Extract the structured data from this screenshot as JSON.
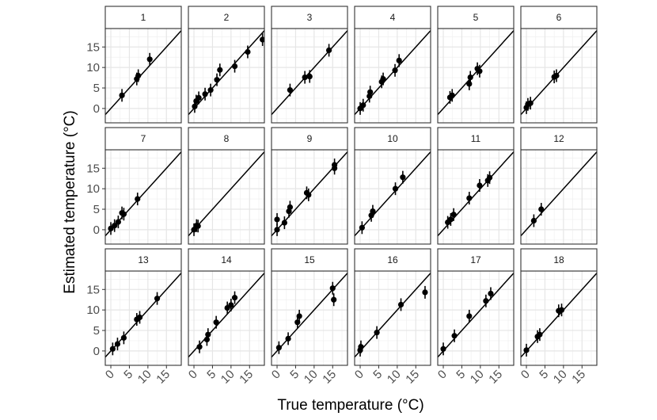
{
  "chart_data": {
    "type": "scatter",
    "facets": [
      "1",
      "2",
      "3",
      "4",
      "5",
      "6",
      "7",
      "8",
      "9",
      "10",
      "11",
      "12",
      "13",
      "14",
      "15",
      "16",
      "17",
      "18"
    ],
    "xlabel": "True temperature (°C)",
    "ylabel": "Estimated temperature (°C)",
    "xlim": [
      -1.5,
      19
    ],
    "ylim": [
      -3.5,
      19.5
    ],
    "xticks": [
      0,
      5,
      10,
      15
    ],
    "yticks": [
      0,
      5,
      10,
      15
    ],
    "grid": true,
    "reference_line": "y = x",
    "series": [
      {
        "facet": "1",
        "points": [
          [
            3,
            3.2
          ],
          [
            7,
            7.2
          ],
          [
            7.4,
            8
          ],
          [
            10.5,
            12
          ]
        ]
      },
      {
        "facet": "2",
        "points": [
          [
            0.2,
            0.5
          ],
          [
            0.6,
            1.8
          ],
          [
            1.3,
            2.6
          ],
          [
            3,
            3.5
          ],
          [
            4.5,
            4.5
          ],
          [
            6.2,
            7
          ],
          [
            7,
            9.4
          ],
          [
            11,
            10.3
          ],
          [
            14.5,
            13.8
          ],
          [
            18.5,
            16.8
          ]
        ]
      },
      {
        "facet": "3",
        "points": [
          [
            3.5,
            4.5
          ],
          [
            7.5,
            7.6
          ],
          [
            8.8,
            7.8
          ],
          [
            14,
            14.2
          ]
        ]
      },
      {
        "facet": "4",
        "points": [
          [
            0,
            0
          ],
          [
            0.8,
            0.8
          ],
          [
            2.5,
            3
          ],
          [
            2.7,
            4
          ],
          [
            5.8,
            6.5
          ],
          [
            6.2,
            7.2
          ],
          [
            9.4,
            9.3
          ],
          [
            10.5,
            11.7
          ]
        ]
      },
      {
        "facet": "5",
        "points": [
          [
            1.8,
            2.7
          ],
          [
            2.4,
            3.2
          ],
          [
            7,
            6
          ],
          [
            7.3,
            7.6
          ],
          [
            9.2,
            9.7
          ],
          [
            9.8,
            9.1
          ]
        ]
      },
      {
        "facet": "6",
        "points": [
          [
            0,
            0.2
          ],
          [
            0.4,
            1
          ],
          [
            1.1,
            1.3
          ],
          [
            7.5,
            7.7
          ],
          [
            8.1,
            8
          ]
        ]
      },
      {
        "facet": "7",
        "points": [
          [
            0,
            0.3
          ],
          [
            1,
            1
          ],
          [
            2,
            1.9
          ],
          [
            3,
            4.1
          ],
          [
            3.5,
            3.8
          ],
          [
            7.2,
            7.5
          ]
        ]
      },
      {
        "facet": "8",
        "points": [
          [
            0,
            0
          ],
          [
            0.7,
            1
          ],
          [
            1.1,
            0.9
          ]
        ]
      },
      {
        "facet": "9",
        "points": [
          [
            0,
            2.5
          ],
          [
            0,
            0
          ],
          [
            2,
            1.7
          ],
          [
            3.2,
            4.5
          ],
          [
            3.5,
            5.5
          ],
          [
            8,
            9
          ],
          [
            8.5,
            8.5
          ],
          [
            15.5,
            15.8
          ],
          [
            15.5,
            15
          ]
        ]
      },
      {
        "facet": "10",
        "points": [
          [
            0.5,
            0.5
          ],
          [
            3,
            3.5
          ],
          [
            3.4,
            4.5
          ],
          [
            9.5,
            10
          ],
          [
            11.5,
            12.8
          ]
        ]
      },
      {
        "facet": "11",
        "points": [
          [
            1.2,
            1.8
          ],
          [
            2,
            2.5
          ],
          [
            2.8,
            3.7
          ],
          [
            7,
            7.7
          ],
          [
            9.8,
            10.8
          ],
          [
            12,
            12
          ],
          [
            12.5,
            12.7
          ]
        ]
      },
      {
        "facet": "12",
        "points": [
          [
            2,
            2.2
          ],
          [
            4,
            5
          ]
        ]
      },
      {
        "facet": "13",
        "points": [
          [
            0.5,
            0.5
          ],
          [
            1.8,
            1.7
          ],
          [
            3.5,
            3.2
          ],
          [
            7,
            7.7
          ],
          [
            7.8,
            8.2
          ],
          [
            12.5,
            12.8
          ]
        ]
      },
      {
        "facet": "14",
        "points": [
          [
            1.5,
            1
          ],
          [
            3.5,
            2.8
          ],
          [
            3.8,
            4
          ],
          [
            6,
            7
          ],
          [
            9,
            10.5
          ],
          [
            10,
            11.2
          ],
          [
            11,
            13
          ]
        ]
      },
      {
        "facet": "15",
        "points": [
          [
            0.5,
            0.8
          ],
          [
            3,
            3
          ],
          [
            5.5,
            7
          ],
          [
            6,
            8.5
          ],
          [
            15,
            15.3
          ],
          [
            15.3,
            12.5
          ]
        ]
      },
      {
        "facet": "16",
        "points": [
          [
            0,
            0.2
          ],
          [
            0.2,
            1
          ],
          [
            4.5,
            4.5
          ],
          [
            11,
            11.3
          ],
          [
            17.5,
            14.3
          ]
        ]
      },
      {
        "facet": "17",
        "points": [
          [
            0,
            0.5
          ],
          [
            3,
            3.7
          ],
          [
            7,
            8.5
          ],
          [
            11.5,
            12.2
          ],
          [
            12.8,
            14
          ]
        ]
      },
      {
        "facet": "18",
        "points": [
          [
            0,
            0.2
          ],
          [
            3,
            3.5
          ],
          [
            3.6,
            4
          ],
          [
            8.7,
            9.8
          ],
          [
            9.5,
            10
          ]
        ]
      }
    ]
  }
}
